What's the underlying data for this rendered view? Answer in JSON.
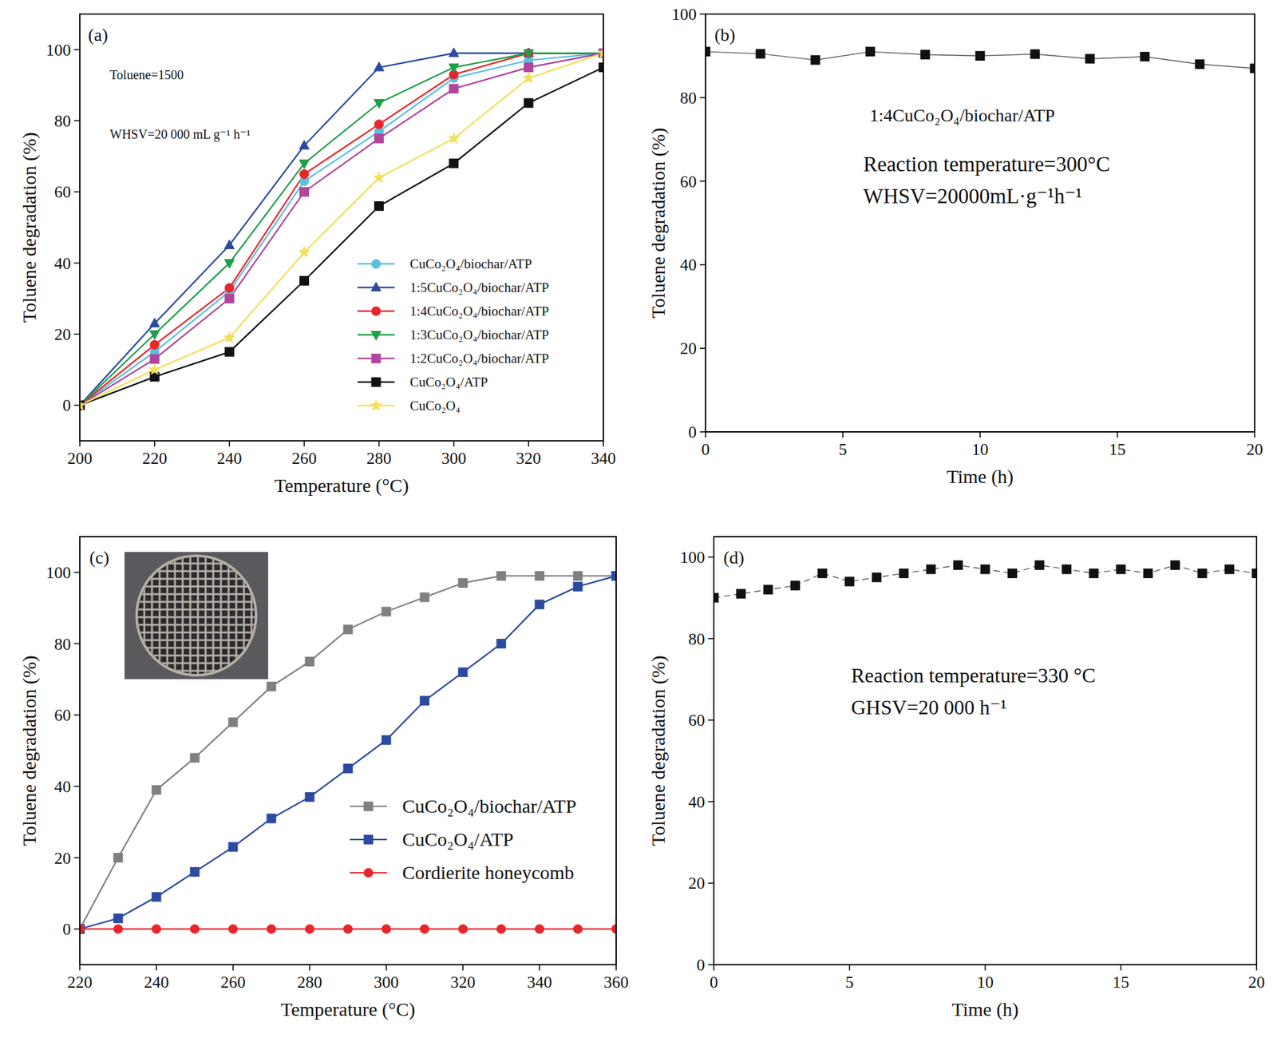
{
  "chart_data": [
    {
      "type": "line",
      "title": "(a)",
      "x_label": "Temperature (°C)",
      "y_label": "Toluene degradation (%)",
      "annotations": [
        "Toluene=1500",
        "WHSV=20 000 mL g⁻¹ h⁻¹"
      ],
      "x": [
        200,
        220,
        240,
        260,
        280,
        300,
        320,
        340
      ],
      "xlim": [
        200,
        340
      ],
      "xticks": [
        200,
        220,
        240,
        260,
        280,
        300,
        320,
        340
      ],
      "ylim": [
        -10,
        110
      ],
      "yticks": [
        0,
        20,
        40,
        60,
        80,
        100
      ],
      "grid": false,
      "legend": "lower right",
      "series": [
        {
          "name": "CuCo₂O₄/biochar/ATP",
          "color": "#5bc0de",
          "marker": "circle",
          "line_style": "solid",
          "values": [
            0,
            15,
            32,
            63,
            77,
            92,
            97,
            99
          ]
        },
        {
          "name": "1:5CuCo₂O₄/biochar/ATP",
          "color": "#2b4a9e",
          "marker": "triangle",
          "line_style": "solid",
          "values": [
            0,
            23,
            45,
            73,
            95,
            99,
            99,
            99
          ]
        },
        {
          "name": "1:4CuCo₂O₄/biochar/ATP",
          "color": "#e8262a",
          "marker": "circle",
          "line_style": "solid",
          "values": [
            0,
            17,
            33,
            65,
            79,
            93,
            99,
            99
          ]
        },
        {
          "name": "1:3CuCo₂O₄/biochar/ATP",
          "color": "#1e9e4a",
          "marker": "triangle-down",
          "line_style": "solid",
          "values": [
            0,
            20,
            40,
            68,
            85,
            95,
            99,
            99
          ]
        },
        {
          "name": "1:2CuCo₂O₄/biochar/ATP",
          "color": "#b0459e",
          "marker": "square",
          "line_style": "solid",
          "values": [
            0,
            13,
            30,
            60,
            75,
            89,
            95,
            99
          ]
        },
        {
          "name": "CuCo₂O₄/ATP",
          "color": "#111111",
          "marker": "square",
          "line_style": "solid",
          "values": [
            0,
            8,
            15,
            35,
            56,
            68,
            85,
            95
          ]
        },
        {
          "name": "CuCo₂O₄",
          "color": "#f2e05a",
          "marker": "star",
          "line_style": "solid",
          "values": [
            0,
            10,
            19,
            43,
            64,
            75,
            92,
            99
          ]
        }
      ]
    },
    {
      "type": "line",
      "title": "(b)",
      "x_label": "Time (h)",
      "y_label": "Toluene degradation (%)",
      "annotations": [
        "1:4CuCo₂O₄/biochar/ATP",
        "Reaction temperature=300°C",
        "WHSV=20000mL·g⁻¹h⁻¹"
      ],
      "x": [
        0,
        2,
        4,
        6,
        8,
        10,
        12,
        14,
        16,
        18,
        20
      ],
      "values": [
        91,
        90.5,
        89,
        91,
        90.3,
        90,
        90.4,
        89.3,
        89.8,
        88,
        87
      ],
      "color": "#111111",
      "marker": "square",
      "line_style": "solid",
      "xlim": [
        0,
        20
      ],
      "xticks": [
        0,
        5,
        10,
        15,
        20
      ],
      "ylim": [
        0,
        100
      ],
      "yticks": [
        0,
        20,
        40,
        60,
        80,
        100
      ],
      "grid": false
    },
    {
      "type": "line",
      "title": "(c)",
      "x_label": "Temperature (°C)",
      "y_label": "Toluene degradation (%)",
      "x": [
        220,
        230,
        240,
        250,
        260,
        270,
        280,
        290,
        300,
        310,
        320,
        330,
        340,
        350,
        360
      ],
      "xlim": [
        220,
        360
      ],
      "xticks": [
        220,
        240,
        260,
        280,
        300,
        320,
        340,
        360
      ],
      "ylim": [
        -10,
        110
      ],
      "yticks": [
        0,
        20,
        40,
        60,
        80,
        100
      ],
      "grid": false,
      "legend": "lower right",
      "series": [
        {
          "name": "CuCo₂O₄/biochar/ATP",
          "color": "#808080",
          "marker": "square",
          "line_style": "solid",
          "values": [
            0,
            20,
            39,
            48,
            58,
            68,
            75,
            84,
            89,
            93,
            97,
            99,
            99,
            99,
            99
          ]
        },
        {
          "name": "CuCo₂O₄/ATP",
          "color": "#2b4aa0",
          "marker": "square",
          "line_style": "solid",
          "values": [
            0,
            3,
            9,
            16,
            23,
            31,
            37,
            45,
            53,
            64,
            72,
            80,
            91,
            96,
            99
          ]
        },
        {
          "name": "Cordierite honeycomb",
          "color": "#e8262a",
          "marker": "circle",
          "line_style": "solid",
          "values": [
            0,
            0,
            0,
            0,
            0,
            0,
            0,
            0,
            0,
            0,
            0,
            0,
            0,
            0,
            0
          ]
        }
      ]
    },
    {
      "type": "line",
      "title": "(d)",
      "x_label": "Time (h)",
      "y_label": "Toluene degradation (%)",
      "annotations": [
        "Reaction temperature=330 °C",
        "GHSV=20 000 h⁻¹"
      ],
      "x": [
        0,
        1,
        2,
        3,
        4,
        5,
        6,
        7,
        8,
        9,
        10,
        11,
        12,
        13,
        14,
        15,
        16,
        17,
        18,
        19,
        20
      ],
      "values": [
        90,
        91,
        92,
        93,
        96,
        94,
        95,
        96,
        97,
        98,
        97,
        96,
        98,
        97,
        96,
        97,
        96,
        98,
        96,
        97,
        96
      ],
      "color": "#111111",
      "marker": "square",
      "line_style": "dashed",
      "xlim": [
        0,
        20
      ],
      "xticks": [
        0,
        5,
        10,
        15,
        20
      ],
      "ylim": [
        0,
        105
      ],
      "yticks": [
        0,
        20,
        40,
        60,
        80,
        100
      ],
      "grid": false
    }
  ]
}
